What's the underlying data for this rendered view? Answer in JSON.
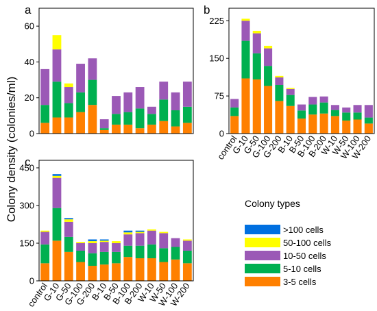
{
  "figure": {
    "ylabel": "Colony density (colonies/ml)"
  },
  "chart_data": [
    {
      "type": "bar",
      "stacked": true,
      "panel": "a",
      "categories": [
        "control",
        "G-10",
        "G-50",
        "G-100",
        "G-200",
        "B-10",
        "B-50",
        "B-100",
        "B-200",
        "W-10",
        "W-50",
        "W-100",
        "W-200"
      ],
      "show_x_tick_labels": false,
      "ylim": [
        0,
        70
      ],
      "yticks": [
        0,
        20,
        40,
        60
      ],
      "grid": false,
      "series": [
        {
          "name": "3-5 cells",
          "color": "#ff8000",
          "values": [
            6,
            9,
            9,
            12,
            16,
            2,
            5,
            5,
            3,
            5,
            7,
            4,
            6
          ]
        },
        {
          "name": "5-10 cells",
          "color": "#00b050",
          "values": [
            10,
            20,
            8,
            11,
            14,
            1,
            6,
            7,
            11,
            6,
            12,
            9,
            9
          ]
        },
        {
          "name": "10-50 cells",
          "color": "#9b59b6",
          "values": [
            20,
            18,
            9,
            16,
            12,
            5,
            10,
            11,
            12,
            4,
            10,
            10,
            14
          ]
        },
        {
          "name": "50-100 cells",
          "color": "#ffff00",
          "values": [
            0,
            8,
            2,
            0,
            0,
            0,
            0,
            0,
            0,
            0,
            0,
            0,
            0
          ]
        },
        {
          "name": ">100 cells",
          "color": "#0070e0",
          "values": [
            0,
            0,
            0,
            0,
            0,
            0,
            0,
            0,
            0,
            0,
            0,
            0,
            0
          ]
        }
      ]
    },
    {
      "type": "bar",
      "stacked": true,
      "panel": "b",
      "categories": [
        "control",
        "G-10",
        "G-50",
        "G-100",
        "G-200",
        "B-10",
        "B-50",
        "B-100",
        "B-200",
        "W-10",
        "W-50",
        "W-100",
        "W-200"
      ],
      "show_x_tick_labels": true,
      "ylim": [
        0,
        250
      ],
      "yticks": [
        0,
        75,
        150,
        225
      ],
      "grid": false,
      "series": [
        {
          "name": "3-5 cells",
          "color": "#ff8000",
          "values": [
            35,
            110,
            108,
            95,
            65,
            55,
            30,
            38,
            40,
            35,
            26,
            28,
            20
          ]
        },
        {
          "name": "5-10 cells",
          "color": "#00b050",
          "values": [
            17,
            75,
            52,
            40,
            32,
            22,
            16,
            20,
            22,
            12,
            16,
            14,
            12
          ]
        },
        {
          "name": "10-50 cells",
          "color": "#9b59b6",
          "values": [
            17,
            40,
            40,
            35,
            15,
            12,
            12,
            15,
            12,
            10,
            10,
            15,
            25
          ]
        },
        {
          "name": "50-100 cells",
          "color": "#ffff00",
          "values": [
            0,
            4,
            5,
            5,
            3,
            2,
            0,
            0,
            0,
            0,
            0,
            0,
            0
          ]
        },
        {
          "name": ">100 cells",
          "color": "#0070e0",
          "values": [
            0,
            0,
            0,
            0,
            0,
            0,
            0,
            0,
            0,
            0,
            0,
            0,
            0
          ]
        }
      ]
    },
    {
      "type": "bar",
      "stacked": true,
      "panel": "c",
      "categories": [
        "control",
        "G-10",
        "G-50",
        "G-100",
        "G-200",
        "B-10",
        "B-50",
        "B-100",
        "B-200",
        "W-10",
        "W-50",
        "W-100",
        "W-200"
      ],
      "show_x_tick_labels": true,
      "ylim": [
        0,
        480
      ],
      "yticks": [
        0,
        150,
        300,
        450
      ],
      "grid": false,
      "series": [
        {
          "name": "3-5 cells",
          "color": "#ff8000",
          "values": [
            70,
            160,
            115,
            75,
            60,
            65,
            70,
            95,
            90,
            90,
            75,
            85,
            70
          ]
        },
        {
          "name": "5-10 cells",
          "color": "#00b050",
          "values": [
            75,
            130,
            60,
            45,
            50,
            50,
            45,
            45,
            50,
            55,
            55,
            50,
            50
          ]
        },
        {
          "name": "10-50 cells",
          "color": "#9b59b6",
          "values": [
            50,
            120,
            60,
            30,
            40,
            40,
            35,
            45,
            50,
            55,
            60,
            35,
            40
          ]
        },
        {
          "name": "50-100 cells",
          "color": "#ffff00",
          "values": [
            5,
            8,
            10,
            5,
            8,
            5,
            8,
            8,
            5,
            5,
            5,
            0,
            5
          ]
        },
        {
          "name": ">100 cells",
          "color": "#0070e0",
          "values": [
            0,
            7,
            5,
            0,
            7,
            5,
            0,
            7,
            5,
            0,
            0,
            0,
            0
          ]
        }
      ]
    }
  ],
  "legend": {
    "title": "Colony types",
    "items": [
      {
        "label": ">100 cells",
        "color": "#0070e0"
      },
      {
        "label": "50-100 cells",
        "color": "#ffff00"
      },
      {
        "label": "10-50 cells",
        "color": "#9b59b6"
      },
      {
        "label": "5-10 cells",
        "color": "#00b050"
      },
      {
        "label": "3-5 cells",
        "color": "#ff8000"
      }
    ]
  }
}
